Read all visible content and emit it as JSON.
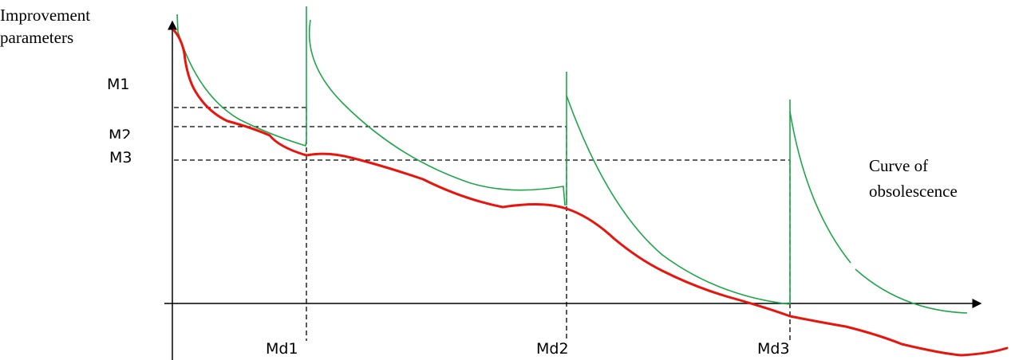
{
  "labels": {
    "y_axis": [
      "Improvement",
      "parameters"
    ],
    "curve": [
      "Curve of",
      "obsolescence"
    ],
    "m1": "M1",
    "m2": "M2",
    "m3": "M3",
    "md1": "Md1",
    "md2": "Md2",
    "md3": "Md3"
  },
  "colors": {
    "obsolescence_curve": "#e8150e",
    "model_curves": "#1fa64a",
    "axes": "#000000",
    "guide_lines": "#000000"
  }
}
